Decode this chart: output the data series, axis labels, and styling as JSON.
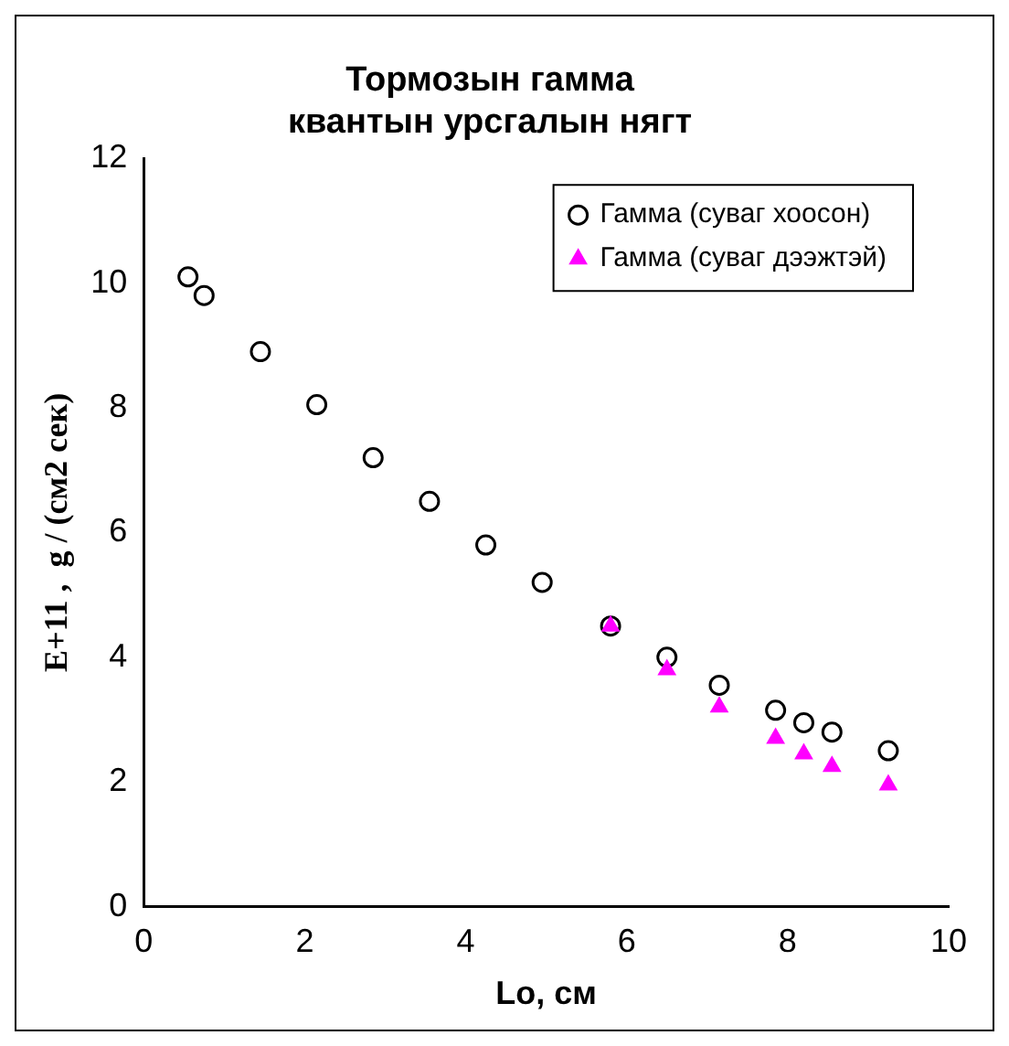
{
  "chart_data": {
    "type": "scatter",
    "title": "Тормозын гамма квантын урсгалын нягт",
    "xlabel": "Lo, см",
    "ylabel": "E+11 ,  g / (см2 сек)",
    "xlim": [
      0,
      10
    ],
    "xticks": [
      0,
      2,
      4,
      6,
      8,
      10
    ],
    "ylim": [
      0,
      12
    ],
    "yticks": [
      0,
      2,
      4,
      6,
      8,
      10,
      12
    ],
    "grid": false,
    "legend": "top right",
    "series": [
      {
        "name": "Гамма (суваг хоосон)",
        "color": "#000000",
        "marker": "circle",
        "x": [
          0.55,
          0.75,
          1.45,
          2.15,
          2.85,
          3.55,
          4.25,
          4.95,
          5.8,
          6.5,
          7.15,
          7.85,
          8.2,
          8.55,
          9.25
        ],
        "values": [
          10.1,
          9.8,
          8.9,
          8.05,
          7.2,
          6.5,
          5.8,
          5.2,
          4.5,
          4.0,
          3.55,
          3.15,
          2.95,
          2.8,
          2.5
        ]
      },
      {
        "name": "Гамма (суваг дээжтэй)",
        "color": "#ff00ff",
        "marker": "triangle",
        "x": [
          5.8,
          6.5,
          7.15,
          7.85,
          8.2,
          8.55,
          9.25
        ],
        "values": [
          4.5,
          3.8,
          3.2,
          2.7,
          2.45,
          2.25,
          1.95
        ]
      }
    ]
  }
}
